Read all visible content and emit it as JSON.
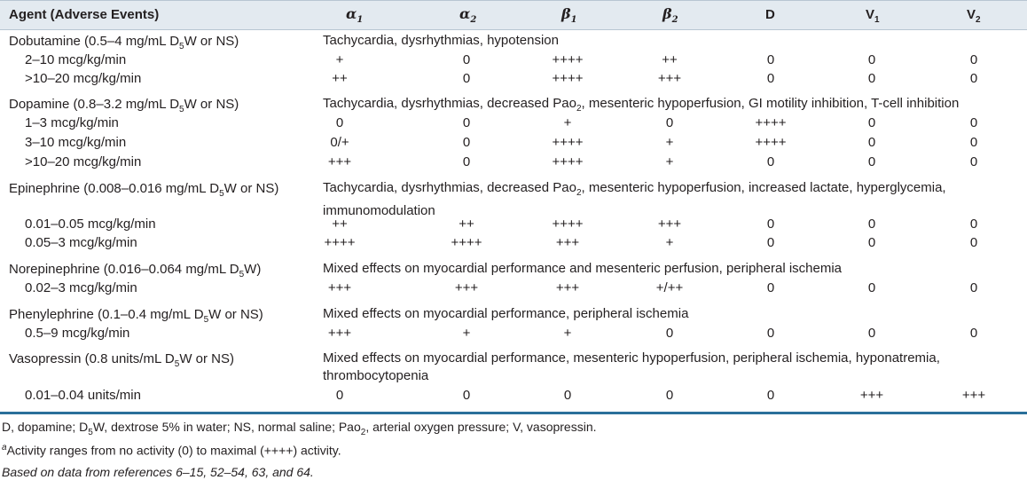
{
  "header": {
    "agent": "Agent (Adverse Events)",
    "alpha1": "α",
    "alpha1_sub": "1",
    "alpha2": "α",
    "alpha2_sub": "2",
    "beta1": "β",
    "beta1_sub": "1",
    "beta2": "β",
    "beta2_sub": "2",
    "d": "D",
    "v1": "V",
    "v1_sub": "1",
    "v2": "V",
    "v2_sub": "2"
  },
  "agents": [
    {
      "name_pre": "Dobutamine (0.5–4 mg/mL D",
      "name_sub": "5",
      "name_post": "W or NS)",
      "effects": "Tachycardia, dysrhythmias, hypotension",
      "rows": [
        {
          "dose": "2–10 mcg/kg/min",
          "vals": [
            "+",
            "0",
            "++++",
            "++",
            "0",
            "0",
            "0"
          ]
        },
        {
          "dose": ">10–20 mcg/kg/min",
          "vals": [
            "++",
            "0",
            "++++",
            "+++",
            "0",
            "0",
            "0"
          ]
        }
      ]
    },
    {
      "name_pre": "Dopamine (0.8–3.2 mg/mL D",
      "name_sub": "5",
      "name_post": "W or NS)",
      "effects_pre": "Tachycardia, dysrhythmias, decreased Pao",
      "effects_sub": "2",
      "effects_post": ", mesenteric hypoperfusion, GI motility inhibition, T-cell inhibition",
      "rows": [
        {
          "dose": "1–3 mcg/kg/min",
          "vals": [
            "0",
            "0",
            "+",
            "0",
            "++++",
            "0",
            "0"
          ]
        },
        {
          "dose": "3–10 mcg/kg/min",
          "vals": [
            "0/+",
            "0",
            "++++",
            "+",
            "++++",
            "0",
            "0"
          ]
        },
        {
          "dose": ">10–20 mcg/kg/min",
          "vals": [
            "+++",
            "0",
            "++++",
            "+",
            "0",
            "0",
            "0"
          ]
        }
      ]
    },
    {
      "name_pre": "Epinephrine (0.008–0.016 mg/mL D",
      "name_sub": "5",
      "name_post": "W or NS)",
      "effects_pre": "Tachycardia, dysrhythmias, decreased Pao",
      "effects_sub": "2",
      "effects_post": ", mesenteric hypoperfusion, increased lactate, hyperglycemia, immunomodulation",
      "rows": [
        {
          "dose": "0.01–0.05 mcg/kg/min",
          "vals": [
            "++",
            "++",
            "++++",
            "+++",
            "0",
            "0",
            "0"
          ]
        },
        {
          "dose": "0.05–3 mcg/kg/min",
          "vals": [
            "++++",
            "++++",
            "+++",
            "+",
            "0",
            "0",
            "0"
          ]
        }
      ]
    },
    {
      "name_pre": "Norepinephrine (0.016–0.064 mg/mL D",
      "name_sub": "5",
      "name_post": "W)",
      "effects": "Mixed effects on myocardial performance and mesenteric perfusion, peripheral ischemia",
      "rows": [
        {
          "dose": "0.02–3 mcg/kg/min",
          "vals": [
            "+++",
            "+++",
            "+++",
            "+/++",
            "0",
            "0",
            "0"
          ]
        }
      ]
    },
    {
      "name_pre": "Phenylephrine (0.1–0.4 mg/mL D",
      "name_sub": "5",
      "name_post": "W or NS)",
      "effects": "Mixed effects on myocardial performance, peripheral ischemia",
      "rows": [
        {
          "dose": "0.5–9 mcg/kg/min",
          "vals": [
            "+++",
            "+",
            "+",
            "0",
            "0",
            "0",
            "0"
          ]
        }
      ]
    },
    {
      "name_pre": "Vasopressin (0.8 units/mL D",
      "name_sub": "5",
      "name_post": "W or NS)",
      "effects": "Mixed effects on myocardial performance, mesenteric hypoperfusion, peripheral ischemia, hyponatremia, thrombocytopenia",
      "rows": [
        {
          "dose": "0.01–0.04 units/min",
          "vals": [
            "0",
            "0",
            "0",
            "0",
            "0",
            "+++",
            "+++"
          ]
        }
      ]
    }
  ],
  "footnotes": {
    "abbrev_1": "D, dopamine; D",
    "abbrev_sub1": "5",
    "abbrev_2": "W, dextrose 5% in water; NS, normal saline; Pao",
    "abbrev_sub2": "2",
    "abbrev_3": ", arterial oxygen pressure; V, vasopressin.",
    "activity_sup": "a",
    "activity": "Activity ranges from no activity (0) to maximal (++++) activity.",
    "source": "Based on data from references 6–15, 52–54, 63, and 64."
  }
}
